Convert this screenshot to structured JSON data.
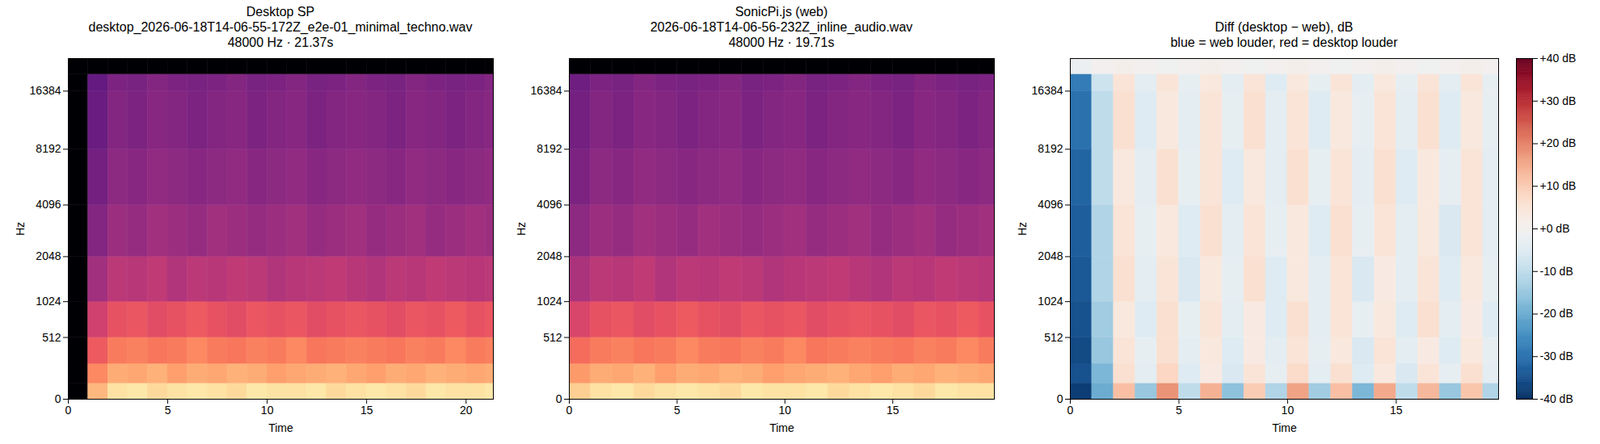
{
  "chart_data": [
    {
      "type": "heatmap",
      "title": [
        "Desktop SP",
        "desktop_2026-06-18T14-06-55-172Z_e2e-01_minimal_techno.wav",
        "48000 Hz · 21.37s"
      ],
      "xlabel": "Time",
      "ylabel": "Hz",
      "xlim": [
        0,
        21.37
      ],
      "xticks": [
        0,
        5,
        10,
        15,
        20
      ],
      "ylim": [
        0,
        24000
      ],
      "yticks": [
        0,
        512,
        1024,
        2048,
        4096,
        8192,
        16384
      ],
      "color": "magma",
      "color_range": [
        -80,
        0
      ],
      "cells": {
        "time_edges": [
          0,
          1,
          2,
          3,
          4,
          5,
          6,
          7,
          8,
          9,
          10,
          11,
          12,
          13,
          14,
          15,
          16,
          17,
          18,
          19,
          20,
          21,
          21.37
        ],
        "freq_edges": [
          0,
          100,
          250,
          512,
          1024,
          2048,
          4096,
          8192,
          16384,
          20000,
          24000
        ],
        "values": [
          [
            -80,
            -12,
            -5,
            -4,
            -6,
            -5,
            -4,
            -5,
            -6,
            -4,
            -5,
            -5,
            -4,
            -6,
            -5,
            -4,
            -5,
            -6,
            -4,
            -5,
            -5,
            -4
          ],
          [
            -80,
            -20,
            -14,
            -15,
            -13,
            -16,
            -14,
            -15,
            -13,
            -14,
            -16,
            -15,
            -14,
            -13,
            -15,
            -16,
            -14,
            -15,
            -13,
            -14,
            -15,
            -14
          ],
          [
            -80,
            -28,
            -22,
            -21,
            -23,
            -22,
            -20,
            -22,
            -23,
            -21,
            -22,
            -20,
            -23,
            -22,
            -21,
            -22,
            -23,
            -21,
            -22,
            -20,
            -22,
            -21
          ],
          [
            -80,
            -35,
            -30,
            -29,
            -31,
            -30,
            -28,
            -30,
            -31,
            -29,
            -30,
            -29,
            -31,
            -30,
            -29,
            -30,
            -31,
            -29,
            -30,
            -28,
            -30,
            -29
          ],
          [
            -80,
            -44,
            -39,
            -40,
            -38,
            -41,
            -39,
            -40,
            -38,
            -39,
            -41,
            -40,
            -39,
            -38,
            -40,
            -41,
            -39,
            -40,
            -38,
            -39,
            -40,
            -39
          ],
          [
            -80,
            -50,
            -45,
            -46,
            -44,
            -45,
            -46,
            -44,
            -45,
            -46,
            -45,
            -44,
            -46,
            -45,
            -44,
            -46,
            -45,
            -44,
            -46,
            -45,
            -44,
            -45
          ],
          [
            -80,
            -53,
            -48,
            -49,
            -47,
            -48,
            -49,
            -48,
            -47,
            -49,
            -48,
            -47,
            -49,
            -48,
            -47,
            -48,
            -49,
            -47,
            -48,
            -49,
            -48,
            -47
          ],
          [
            -80,
            -55,
            -50,
            -51,
            -49,
            -50,
            -51,
            -50,
            -49,
            -51,
            -50,
            -49,
            -51,
            -50,
            -49,
            -50,
            -51,
            -49,
            -50,
            -51,
            -50,
            -49
          ],
          [
            -80,
            -56,
            -51,
            -52,
            -50,
            -51,
            -52,
            -51,
            -50,
            -52,
            -51,
            -50,
            -52,
            -51,
            -50,
            -51,
            -52,
            -50,
            -51,
            -52,
            -51,
            -50
          ],
          [
            -80,
            -80,
            -80,
            -80,
            -80,
            -80,
            -80,
            -80,
            -80,
            -80,
            -80,
            -80,
            -80,
            -80,
            -80,
            -80,
            -80,
            -80,
            -80,
            -80,
            -80,
            -80
          ]
        ]
      }
    },
    {
      "type": "heatmap",
      "title": [
        "SonicPi.js (web)",
        "2026-06-18T14-06-56-232Z_inline_audio.wav",
        "48000 Hz · 19.71s"
      ],
      "xlabel": "Time",
      "ylabel": "Hz",
      "xlim": [
        0,
        19.71
      ],
      "xticks": [
        0,
        5,
        10,
        15
      ],
      "ylim": [
        0,
        24000
      ],
      "yticks": [
        0,
        512,
        1024,
        2048,
        4096,
        8192,
        16384
      ],
      "color": "magma",
      "color_range": [
        -80,
        0
      ],
      "cells": {
        "time_edges": [
          0,
          1,
          2,
          3,
          4,
          5,
          6,
          7,
          8,
          9,
          10,
          11,
          12,
          13,
          14,
          15,
          16,
          17,
          18,
          19,
          19.71
        ],
        "freq_edges": [
          0,
          100,
          250,
          512,
          1024,
          2048,
          4096,
          8192,
          16384,
          20000,
          24000
        ],
        "values": [
          [
            -8,
            -5,
            -4,
            -6,
            -5,
            -4,
            -5,
            -6,
            -4,
            -5,
            -5,
            -4,
            -6,
            -5,
            -4,
            -5,
            -6,
            -4,
            -5,
            -5
          ],
          [
            -17,
            -14,
            -15,
            -13,
            -16,
            -14,
            -15,
            -13,
            -14,
            -16,
            -15,
            -14,
            -13,
            -15,
            -16,
            -14,
            -15,
            -13,
            -14,
            -15
          ],
          [
            -25,
            -22,
            -21,
            -23,
            -22,
            -20,
            -22,
            -23,
            -21,
            -22,
            -20,
            -23,
            -22,
            -21,
            -22,
            -23,
            -21,
            -22,
            -20,
            -22
          ],
          [
            -33,
            -30,
            -29,
            -31,
            -30,
            -28,
            -30,
            -31,
            -29,
            -30,
            -29,
            -31,
            -30,
            -29,
            -30,
            -31,
            -29,
            -30,
            -28,
            -30
          ],
          [
            -42,
            -39,
            -40,
            -38,
            -41,
            -39,
            -40,
            -38,
            -39,
            -41,
            -40,
            -39,
            -38,
            -40,
            -41,
            -39,
            -40,
            -38,
            -39,
            -40
          ],
          [
            -48,
            -45,
            -46,
            -44,
            -45,
            -46,
            -44,
            -45,
            -46,
            -45,
            -44,
            -46,
            -45,
            -44,
            -46,
            -45,
            -44,
            -46,
            -45,
            -44
          ],
          [
            -51,
            -48,
            -49,
            -47,
            -48,
            -49,
            -48,
            -47,
            -49,
            -48,
            -47,
            -49,
            -48,
            -47,
            -48,
            -49,
            -47,
            -48,
            -49,
            -48
          ],
          [
            -53,
            -50,
            -51,
            -49,
            -50,
            -51,
            -50,
            -49,
            -51,
            -50,
            -49,
            -51,
            -50,
            -49,
            -50,
            -51,
            -49,
            -50,
            -51,
            -50
          ],
          [
            -54,
            -51,
            -52,
            -50,
            -51,
            -52,
            -51,
            -50,
            -52,
            -51,
            -50,
            -52,
            -51,
            -50,
            -51,
            -52,
            -50,
            -51,
            -52,
            -51
          ],
          [
            -80,
            -80,
            -80,
            -80,
            -80,
            -80,
            -80,
            -80,
            -80,
            -80,
            -80,
            -80,
            -80,
            -80,
            -80,
            -80,
            -80,
            -80,
            -80,
            -80
          ]
        ]
      }
    },
    {
      "type": "heatmap",
      "title": [
        "Diff (desktop − web), dB",
        "blue = web louder, red = desktop louder"
      ],
      "xlabel": "Time",
      "ylabel": "Hz",
      "xlim": [
        0,
        19.71
      ],
      "xticks": [
        0,
        5,
        10,
        15
      ],
      "ylim": [
        0,
        24000
      ],
      "yticks": [
        0,
        512,
        1024,
        2048,
        4096,
        8192,
        16384
      ],
      "color": "RdBu_r",
      "colorbar": {
        "range": [
          -40,
          40
        ],
        "ticks": [
          {
            "value": 40,
            "label": "+40 dB"
          },
          {
            "value": 30,
            "label": "+30 dB"
          },
          {
            "value": 20,
            "label": "+20 dB"
          },
          {
            "value": 10,
            "label": "+10 dB"
          },
          {
            "value": 0,
            "label": "+0 dB"
          },
          {
            "value": -10,
            "label": "-10 dB"
          },
          {
            "value": -20,
            "label": "-20 dB"
          },
          {
            "value": -30,
            "label": "-30 dB"
          },
          {
            "value": -40,
            "label": "-40 dB"
          }
        ]
      },
      "cells": {
        "time_edges": [
          0,
          1,
          2,
          3,
          4,
          5,
          6,
          7,
          8,
          9,
          10,
          11,
          12,
          13,
          14,
          15,
          16,
          17,
          18,
          19,
          19.71
        ],
        "freq_edges": [
          0,
          100,
          250,
          512,
          1024,
          2048,
          4096,
          8192,
          16384,
          20000,
          24000
        ],
        "values": [
          [
            -38,
            -20,
            12,
            -15,
            18,
            -10,
            14,
            -16,
            10,
            -12,
            16,
            -14,
            12,
            -18,
            15,
            -10,
            13,
            -15,
            11,
            -12
          ],
          [
            -35,
            -18,
            6,
            -4,
            8,
            -5,
            3,
            -6,
            5,
            -3,
            7,
            -4,
            6,
            -5,
            4,
            -6,
            5,
            -3,
            6,
            -4
          ],
          [
            -36,
            -15,
            5,
            -3,
            6,
            -4,
            4,
            -5,
            3,
            -4,
            5,
            -3,
            4,
            -6,
            5,
            -4,
            3,
            -5,
            4,
            -3
          ],
          [
            -35,
            -14,
            4,
            -5,
            6,
            -3,
            5,
            -4,
            3,
            -5,
            6,
            -4,
            5,
            -3,
            4,
            -5,
            6,
            -4,
            3,
            -5
          ],
          [
            -34,
            -12,
            6,
            -4,
            5,
            -6,
            4,
            -3,
            6,
            -5,
            4,
            -4,
            5,
            -6,
            3,
            -4,
            5,
            -5,
            4,
            -3
          ],
          [
            -33,
            -12,
            5,
            -3,
            4,
            -5,
            6,
            -4,
            5,
            -3,
            4,
            -5,
            6,
            -3,
            5,
            -4,
            4,
            -6,
            5,
            -4
          ],
          [
            -32,
            -10,
            4,
            -4,
            6,
            -3,
            5,
            -5,
            4,
            -4,
            6,
            -3,
            5,
            -4,
            6,
            -5,
            4,
            -3,
            5,
            -4
          ],
          [
            -30,
            -10,
            6,
            -5,
            4,
            -4,
            5,
            -3,
            6,
            -4,
            5,
            -5,
            4,
            -3,
            5,
            -4,
            6,
            -5,
            4,
            -3
          ],
          [
            -28,
            -8,
            5,
            -4,
            5,
            -3,
            4,
            -4,
            5,
            -5,
            4,
            -3,
            5,
            -4,
            4,
            -3,
            5,
            -4,
            5,
            -3
          ],
          [
            -2,
            0,
            1,
            0,
            -1,
            0,
            1,
            0,
            -1,
            0,
            1,
            0,
            -1,
            0,
            1,
            0,
            -1,
            0,
            1,
            0
          ]
        ]
      }
    }
  ]
}
